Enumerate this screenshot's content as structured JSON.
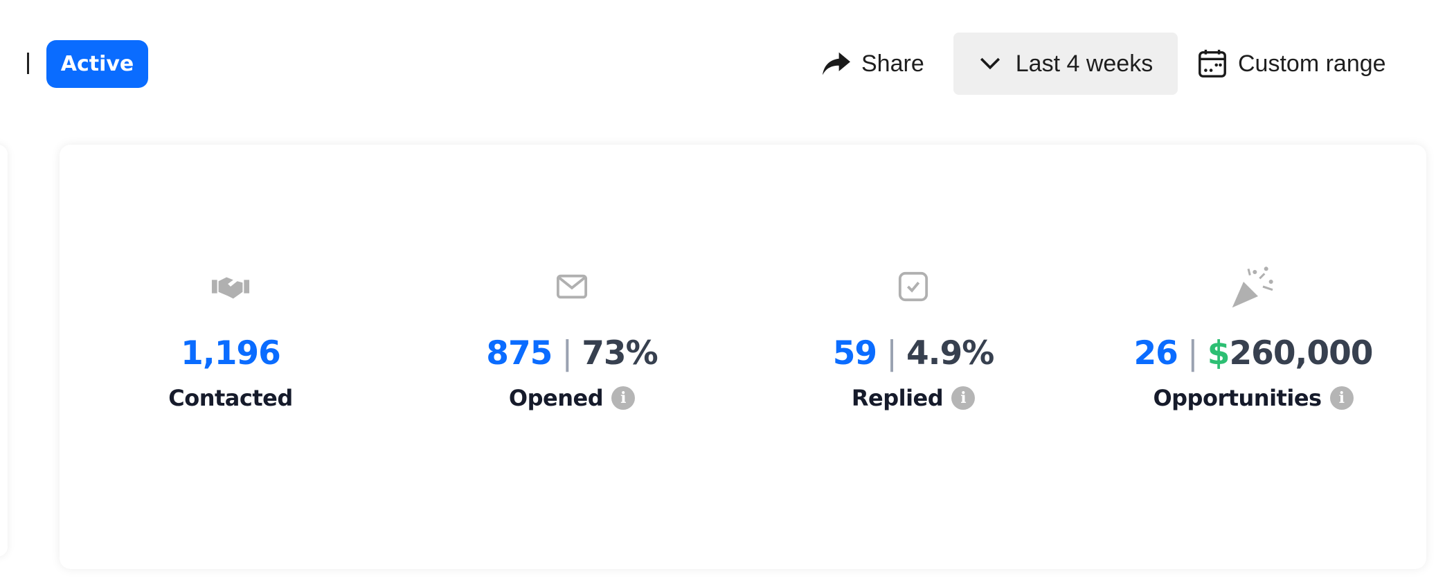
{
  "header": {
    "status_badge": "Active",
    "share_label": "Share",
    "range_label": "Last 4 weeks",
    "custom_range_label": "Custom range"
  },
  "stats": [
    {
      "icon": "handshake-icon",
      "count": "1,196",
      "label": "Contacted"
    },
    {
      "icon": "envelope-icon",
      "count": "875",
      "secondary": "73%",
      "label": "Opened",
      "info": "i"
    },
    {
      "icon": "checkbox-icon",
      "count": "59",
      "secondary": "4.9%",
      "label": "Replied",
      "info": "i"
    },
    {
      "icon": "party-popper-icon",
      "count": "26",
      "currency": "$",
      "secondary": "260,000",
      "label": "Opportunities",
      "info": "i"
    }
  ],
  "separator": "|",
  "colors": {
    "accent": "#0a6cff",
    "money": "#2dbf73",
    "icon": "#b0b0b0"
  }
}
